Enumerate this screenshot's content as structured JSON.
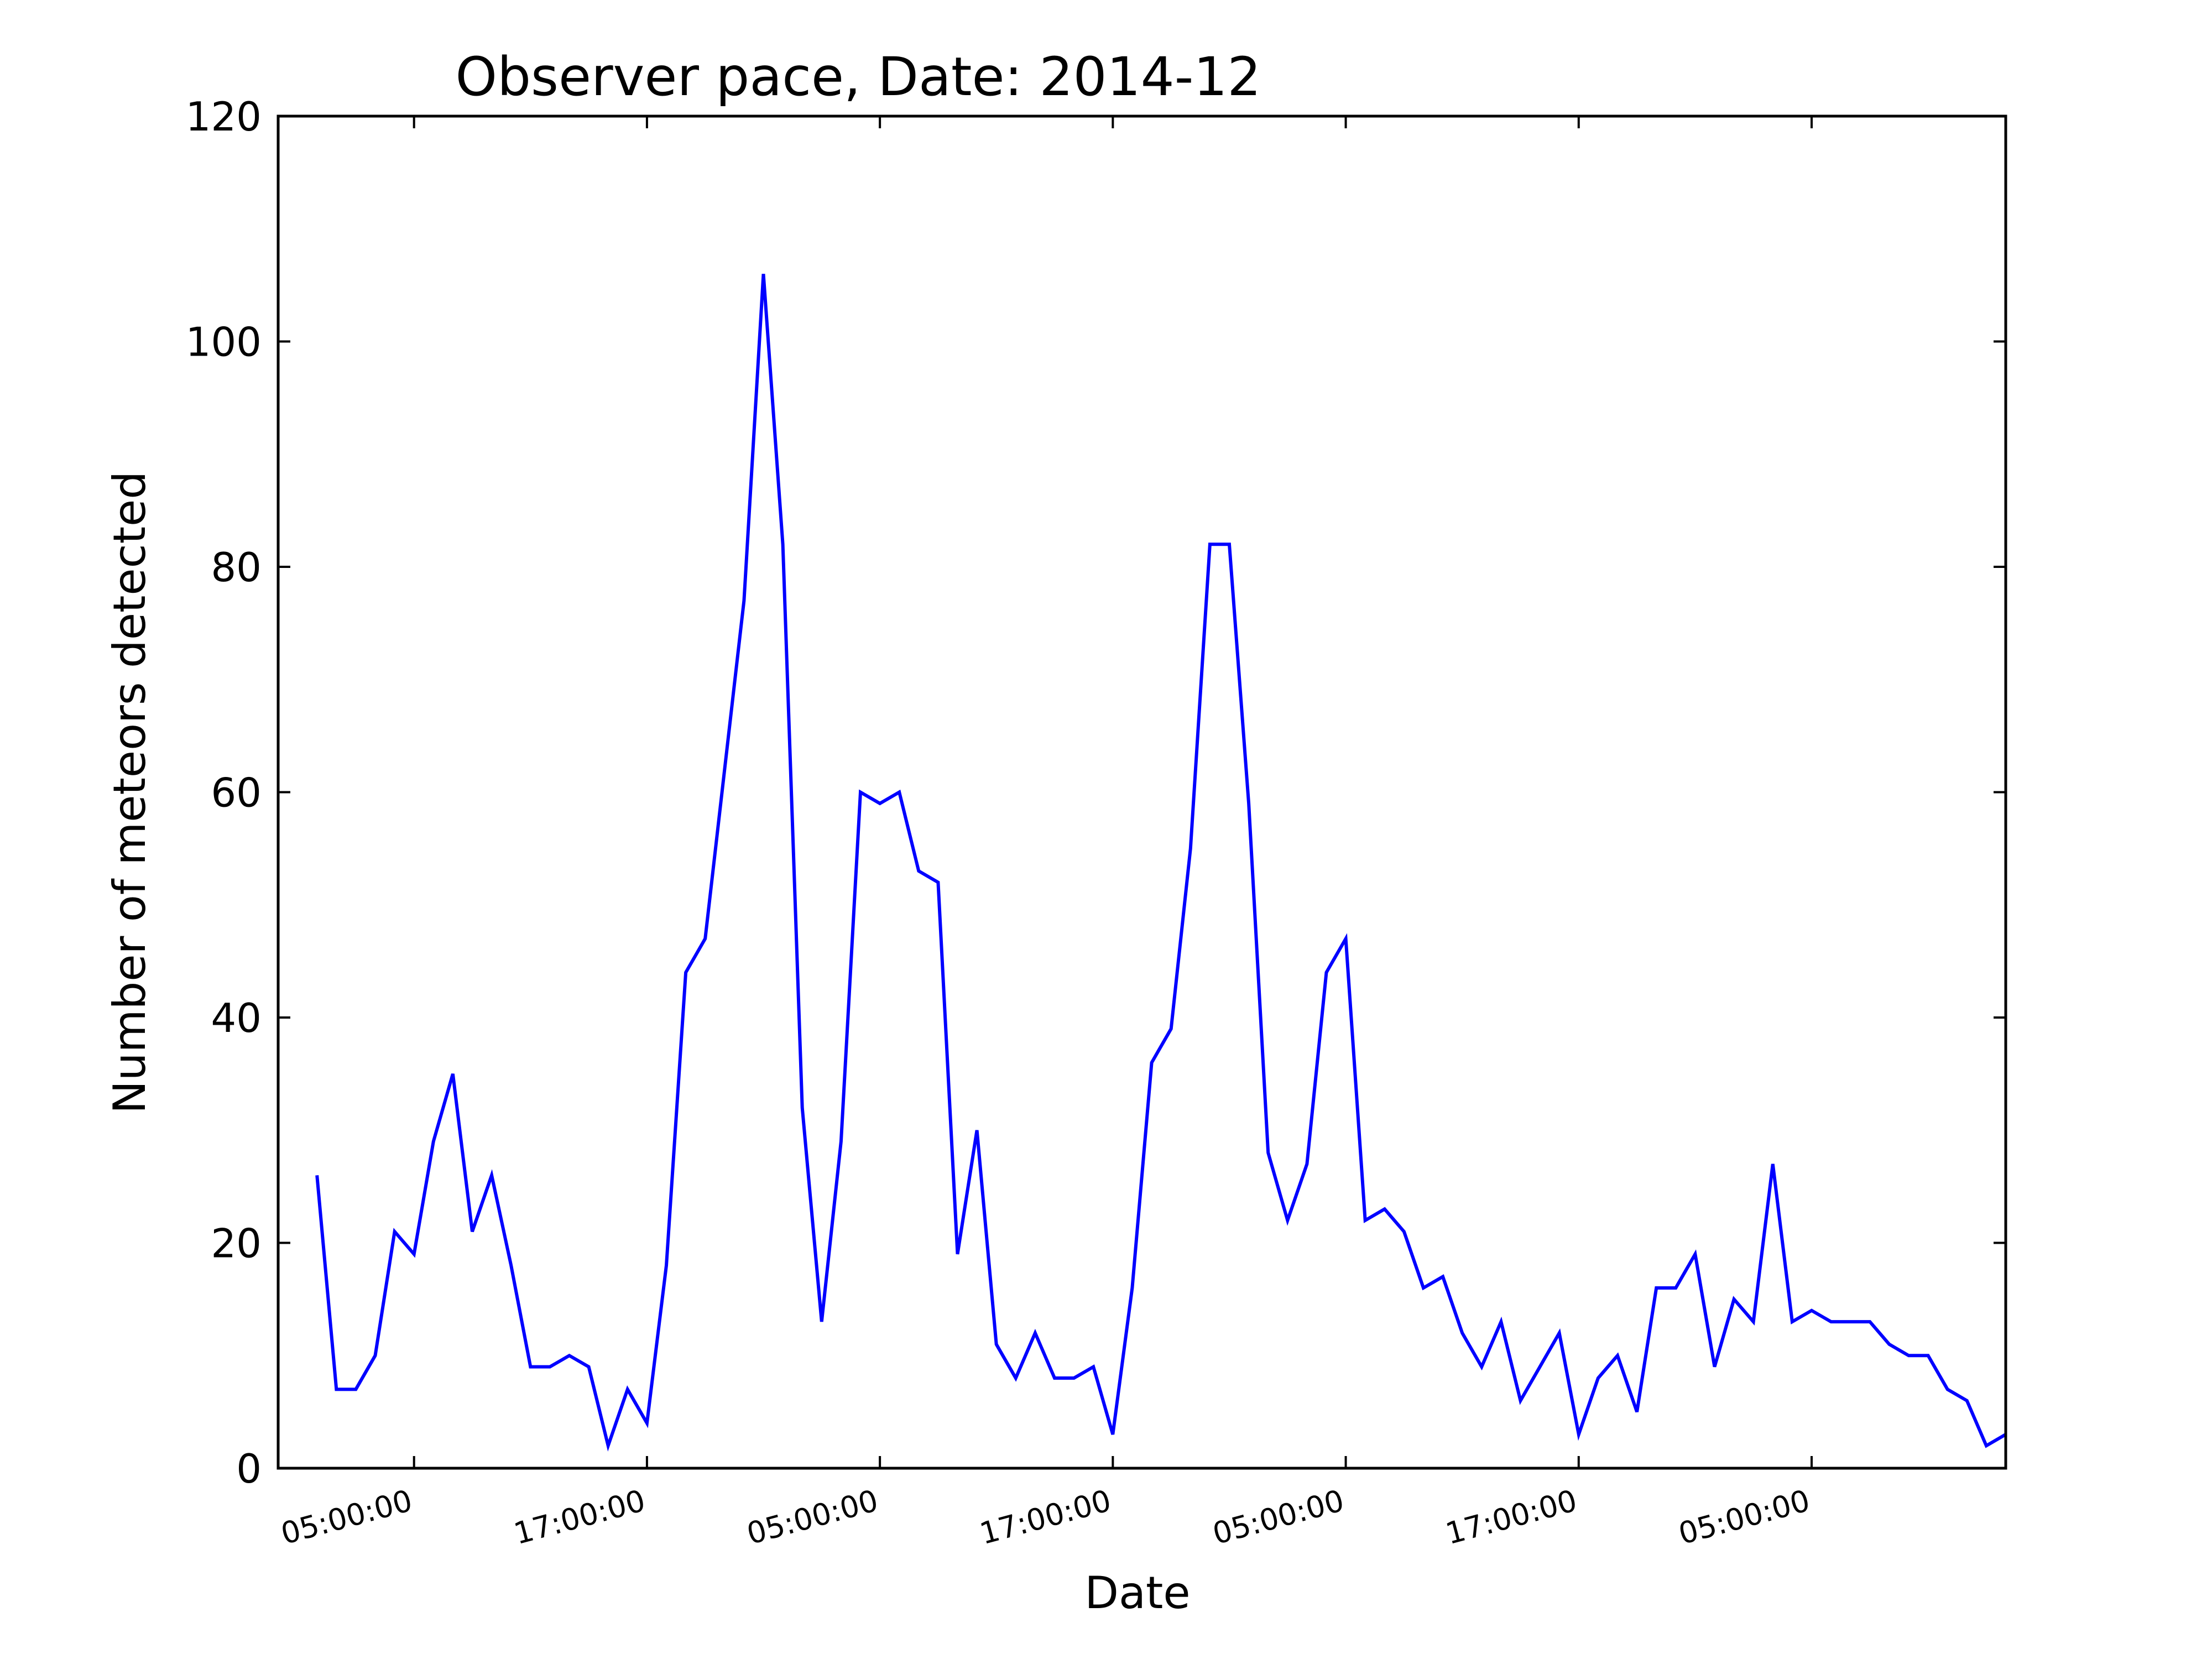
{
  "chart_data": {
    "type": "line",
    "title": "Observer pace, Date: 2014-12",
    "xlabel": "Date",
    "ylabel": "Number of meteors detected",
    "ylim": [
      0,
      120
    ],
    "xlim": [
      -7,
      82
    ],
    "grid": false,
    "x_units": "hours since first 05:00:00 tick",
    "yticks": [
      0,
      20,
      40,
      60,
      80,
      100,
      120
    ],
    "xticks": [
      {
        "x": 0,
        "label": "05:00:00"
      },
      {
        "x": 12,
        "label": "17:00:00"
      },
      {
        "x": 24,
        "label": "05:00:00"
      },
      {
        "x": 36,
        "label": "17:00:00"
      },
      {
        "x": 48,
        "label": "05:00:00"
      },
      {
        "x": 60,
        "label": "17:00:00"
      },
      {
        "x": 72,
        "label": "05:00:00"
      }
    ],
    "series": [
      {
        "name": "meteors",
        "color": "#0000ff",
        "values": [
          26,
          7,
          7,
          10,
          21,
          19,
          29,
          35,
          21,
          26,
          18,
          9,
          9,
          10,
          9,
          2,
          7,
          4,
          18,
          44,
          47,
          62,
          77,
          106,
          82,
          32,
          13,
          29,
          60,
          59,
          60,
          53,
          52,
          19,
          30,
          11,
          8,
          12,
          8,
          8,
          9,
          3,
          16,
          36,
          39,
          55,
          82,
          82,
          59,
          28,
          22,
          27,
          44,
          47,
          22,
          23,
          21,
          16,
          17,
          12,
          9,
          13,
          6,
          9,
          12,
          3,
          8,
          10,
          5,
          16,
          16,
          19,
          9,
          15,
          13,
          27,
          13,
          14,
          13,
          13,
          13,
          11,
          10,
          10,
          7,
          6,
          2,
          3
        ]
      }
    ],
    "x_start": -5,
    "x_step": 1
  }
}
